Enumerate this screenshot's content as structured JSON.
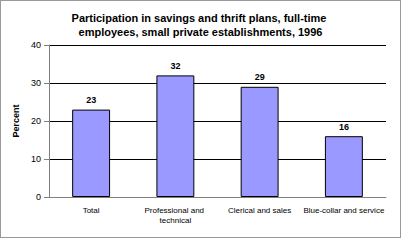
{
  "chart_data": {
    "type": "bar",
    "title": "Participation in savings and thrift plans, full-time employees, small private establishments, 1996",
    "y_label": "Percent",
    "categories": [
      "Total",
      "Professional and technical",
      "Clerical and sales",
      "Blue-collar and service"
    ],
    "values": [
      23,
      32,
      29,
      16
    ],
    "color": "#9999ff",
    "ylim": [
      0,
      40
    ],
    "yticks": [
      0,
      10,
      20,
      30,
      40
    ],
    "grid": true,
    "data_labels": true
  }
}
